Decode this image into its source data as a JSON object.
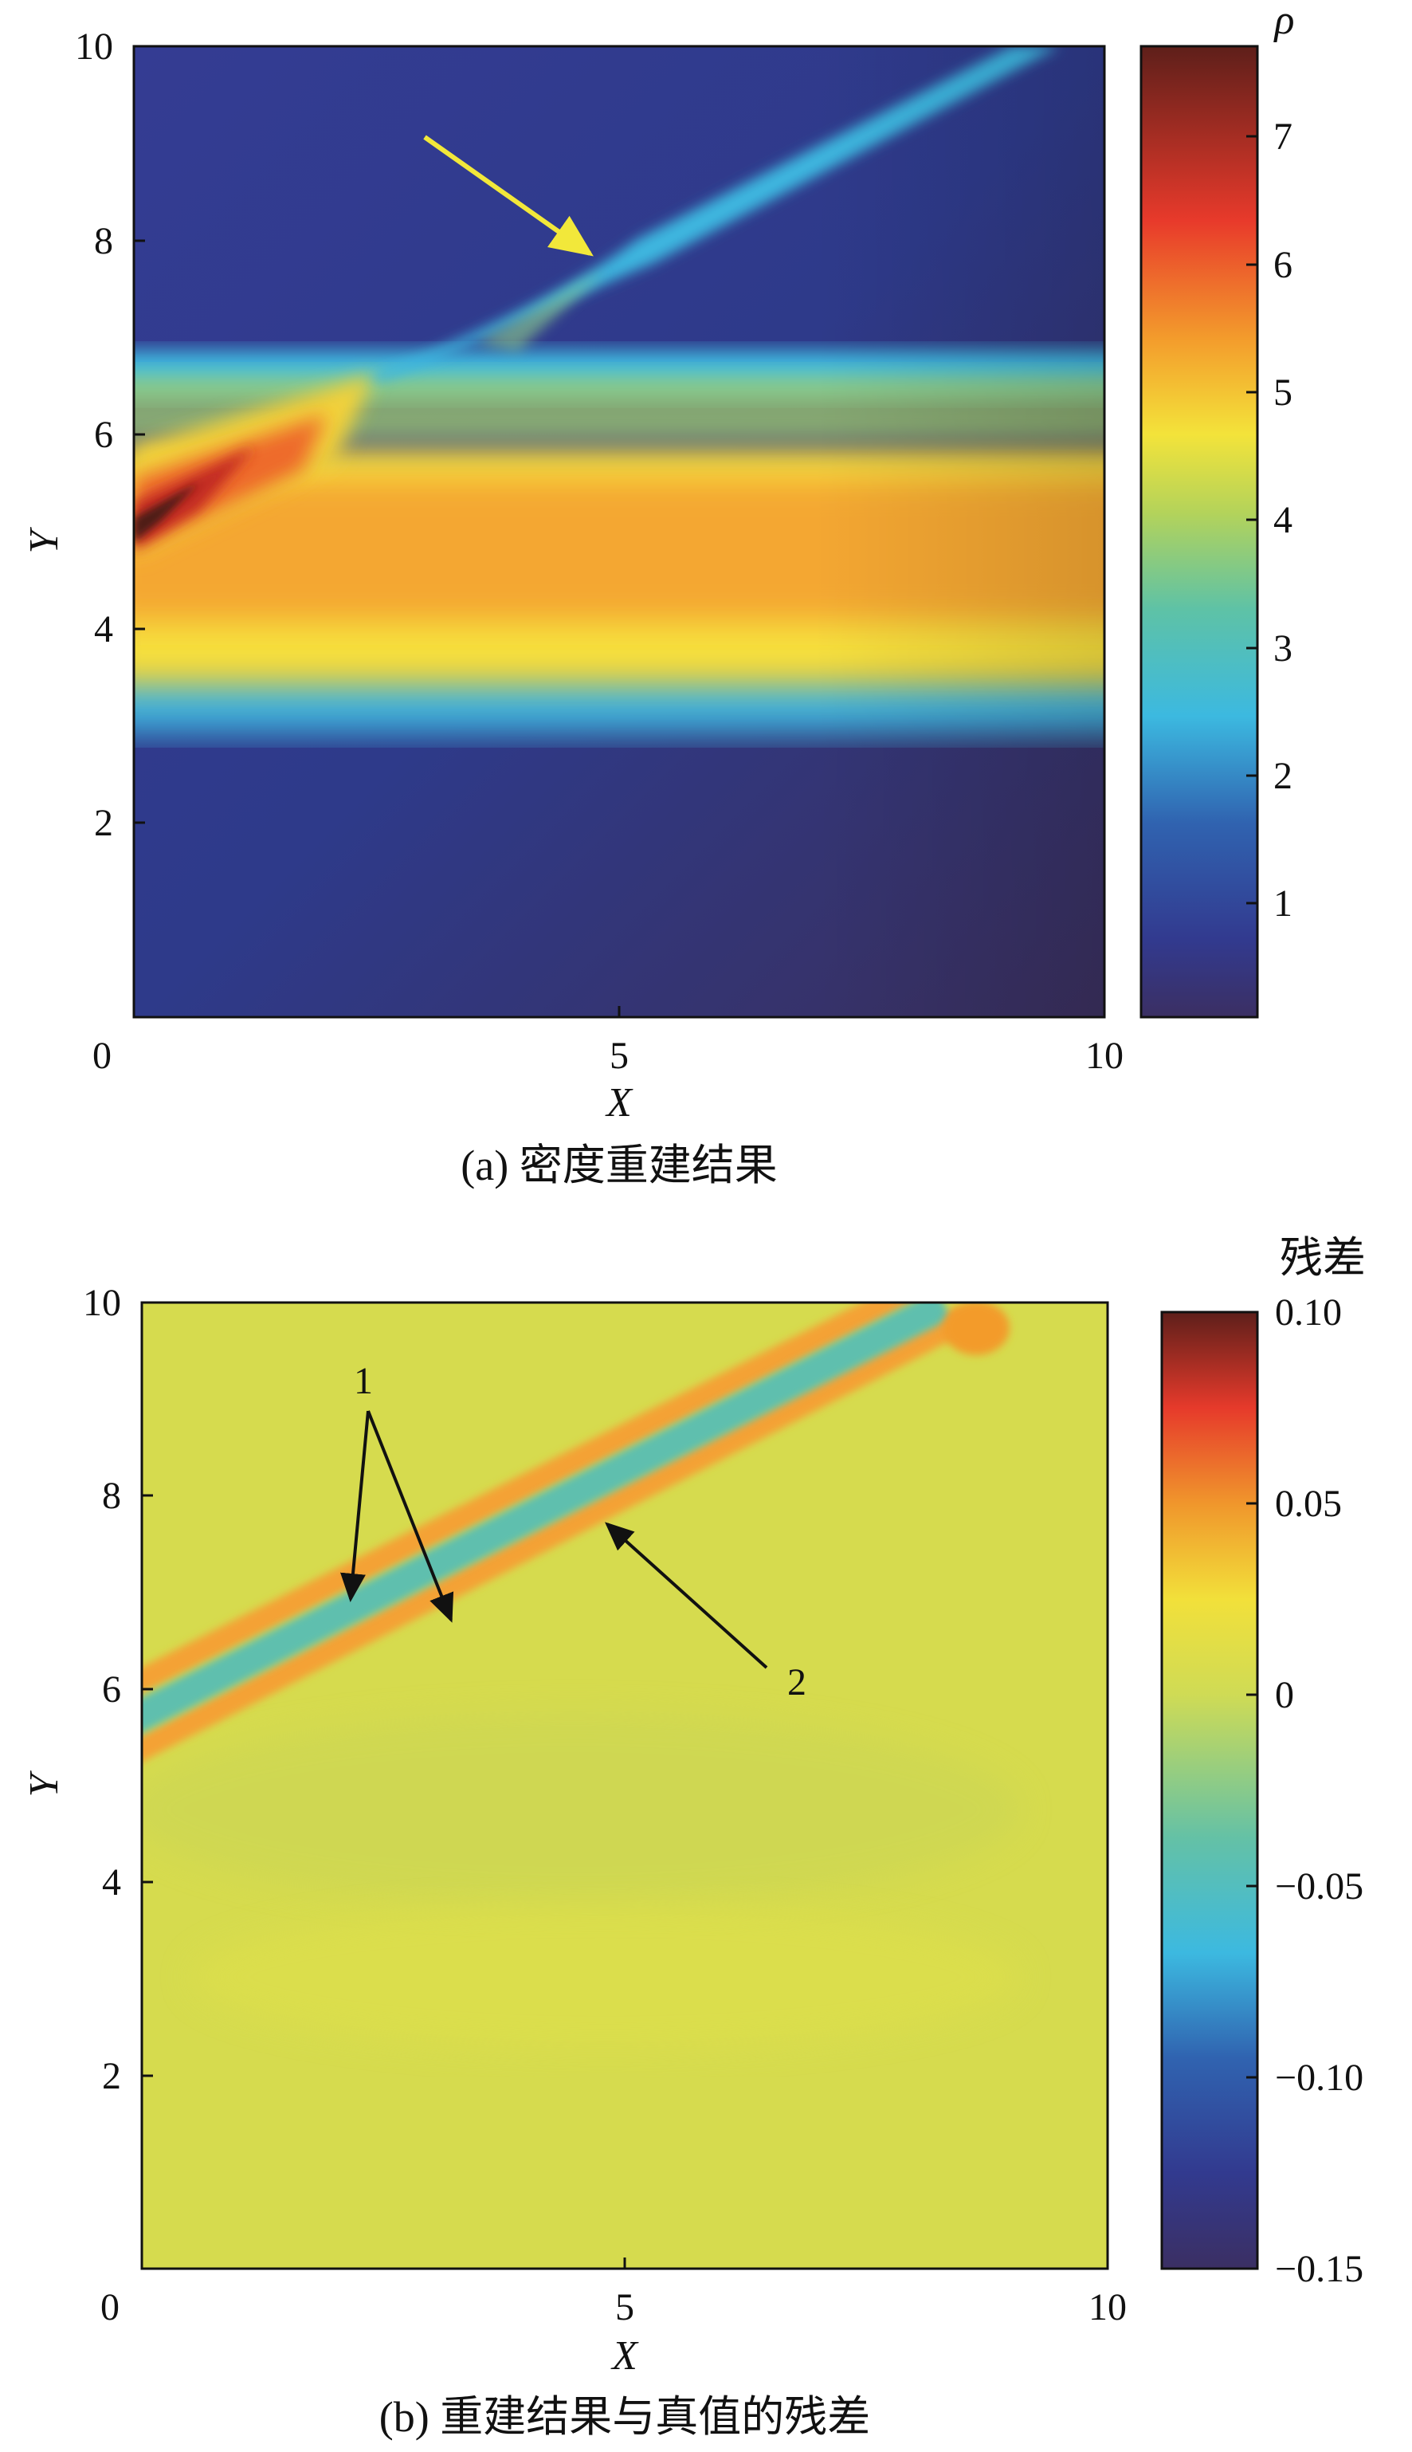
{
  "chart_data": [
    {
      "type": "heatmap",
      "panel": "a",
      "caption": "(a) 密度重建结果",
      "xlabel": "X",
      "ylabel": "Y",
      "xlim": [
        0,
        10
      ],
      "ylim": [
        0,
        10
      ],
      "xticks": [
        "0",
        "5",
        "10"
      ],
      "yticks": [
        "2",
        "4",
        "6",
        "8",
        "10"
      ],
      "colorbar": {
        "label": "ρ",
        "range": [
          0.1,
          7.7
        ],
        "ticks": [
          "1",
          "2",
          "3",
          "4",
          "5",
          "6",
          "7"
        ],
        "tick_values": [
          1,
          2,
          3,
          4,
          5,
          6,
          7
        ]
      },
      "annotations": [
        {
          "type": "arrow",
          "color": "#f2e83a",
          "from": [
            3.0,
            9.3
          ],
          "to": [
            4.7,
            7.85
          ]
        }
      ]
    },
    {
      "type": "heatmap",
      "panel": "b",
      "caption": "(b) 重建结果与真值的残差",
      "xlabel": "X",
      "ylabel": "Y",
      "xlim": [
        0,
        10
      ],
      "ylim": [
        0,
        10
      ],
      "xticks": [
        "0",
        "5",
        "10"
      ],
      "yticks": [
        "2",
        "4",
        "6",
        "8",
        "10"
      ],
      "colorbar": {
        "label": "残差",
        "range": [
          -0.15,
          0.1
        ],
        "ticks": [
          "0.10",
          "0.05",
          "0",
          "−0.05",
          "−0.10",
          "−0.15"
        ],
        "tick_values": [
          0.1,
          0.05,
          0,
          -0.05,
          -0.1,
          -0.15
        ]
      },
      "annotations": [
        {
          "type": "label",
          "text": "1",
          "at": [
            2.3,
            9.1
          ]
        },
        {
          "type": "arrow",
          "color": "#111111",
          "from": [
            2.4,
            8.85
          ],
          "to": [
            2.2,
            6.7
          ]
        },
        {
          "type": "arrow",
          "color": "#111111",
          "from": [
            2.4,
            8.85
          ],
          "to": [
            3.25,
            6.5
          ]
        },
        {
          "type": "label",
          "text": "2",
          "at": [
            6.7,
            6.1
          ]
        },
        {
          "type": "arrow",
          "color": "#111111",
          "from": [
            6.35,
            6.2
          ],
          "to": [
            4.6,
            7.85
          ]
        }
      ]
    }
  ]
}
